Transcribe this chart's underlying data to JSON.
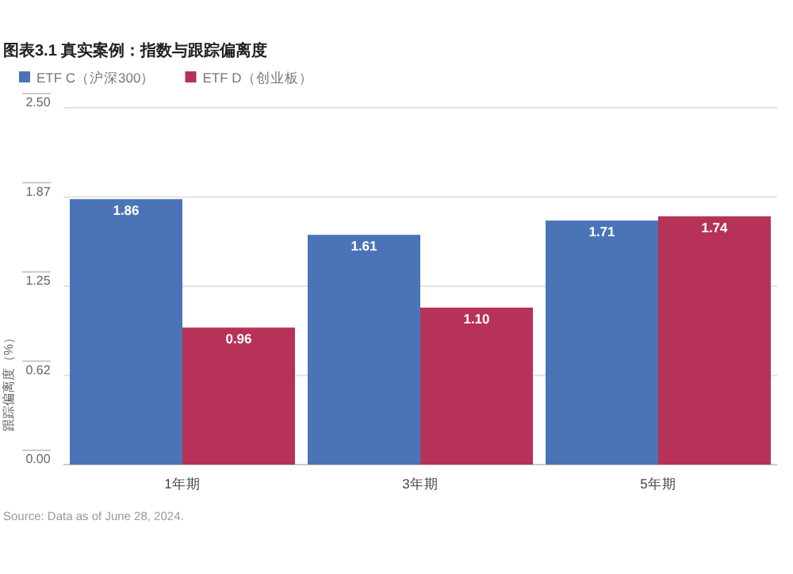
{
  "chart_data": {
    "type": "bar",
    "title": "图表3.1 真实案例：指数与跟踪偏离度",
    "ylabel": "跟踪偏离度（%）",
    "categories": [
      "1年期",
      "3年期",
      "5年期"
    ],
    "series": [
      {
        "name": "ETF C（沪深300）",
        "color": "#4a74b6",
        "values": [
          1.86,
          1.61,
          1.71
        ],
        "value_labels": [
          "1.86",
          "1.61",
          "1.71"
        ]
      },
      {
        "name": "ETF D（创业板）",
        "color": "#b63259",
        "values": [
          0.96,
          1.1,
          1.74
        ],
        "value_labels": [
          "0.96",
          "1.10",
          "1.74"
        ]
      }
    ],
    "ylim": [
      0,
      2.5
    ],
    "yticks": [
      {
        "value": 0,
        "label": "0.00"
      },
      {
        "value": 0.625,
        "label": "0.62"
      },
      {
        "value": 1.25,
        "label": "1.25"
      },
      {
        "value": 1.875,
        "label": "1.87"
      },
      {
        "value": 2.5,
        "label": "2.50"
      }
    ],
    "grid": "y",
    "legend": "top left",
    "annotations": [
      "Source: Data as of June 28, 2024."
    ]
  }
}
